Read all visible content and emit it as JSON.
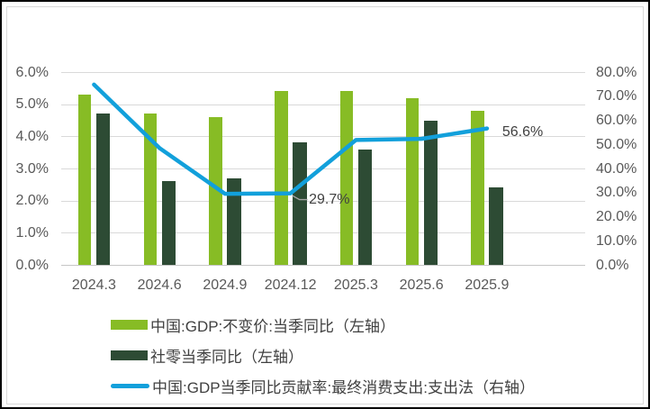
{
  "chart_data": {
    "type": "combo",
    "title": "",
    "xlabel": "",
    "ylabel": "",
    "categories": [
      "2024.3",
      "2024.6",
      "2024.9",
      "2024.12",
      "2025.3",
      "2025.6",
      "2025.9"
    ],
    "series": [
      {
        "name": "中国:GDP:不变价:当季同比（左轴）",
        "type": "bar",
        "axis": "left",
        "color": "#87BC25",
        "values": [
          5.3,
          4.7,
          4.6,
          5.4,
          5.4,
          5.2,
          4.8
        ]
      },
      {
        "name": "社零当季同比（左轴）",
        "type": "bar",
        "axis": "left",
        "color": "#2D4B34",
        "values": [
          4.7,
          2.6,
          2.7,
          3.8,
          3.6,
          4.5,
          2.4
        ]
      },
      {
        "name": "中国:GDP当季同比贡献率:最终消费支出:支出法（右轴）",
        "type": "line",
        "axis": "right",
        "color": "#12A0DB",
        "values": [
          74.8,
          48.5,
          29.5,
          29.7,
          51.8,
          52.3,
          56.6
        ]
      }
    ],
    "left_axis": {
      "min": 0,
      "max": 6,
      "ticks": [
        "6.0%",
        "5.0%",
        "4.0%",
        "3.0%",
        "2.0%",
        "1.0%",
        "0.0%"
      ]
    },
    "right_axis": {
      "min": 0,
      "max": 80,
      "ticks": [
        "80.0%",
        "70.0%",
        "60.0%",
        "50.0%",
        "40.0%",
        "30.0%",
        "20.0%",
        "10.0%",
        "0.0%"
      ]
    },
    "annotations": [
      {
        "text": "29.7%",
        "series": 2,
        "category_index": 3,
        "value": 29.7,
        "leader": true
      },
      {
        "text": "56.6%",
        "series": 2,
        "category_index": 6,
        "value": 56.6,
        "leader": false
      }
    ],
    "extra_category_slots": 1,
    "grid": true,
    "legend_position": "bottom-left"
  },
  "colors": {
    "background": "#FFFFFF",
    "frame": "#000000",
    "inner_border": "#D9D9D9",
    "grid": "#D9D9D9",
    "baseline": "#C6C6C6",
    "axis_text": "#595959",
    "label_text": "#404040",
    "leader": "#A6A6A6"
  }
}
